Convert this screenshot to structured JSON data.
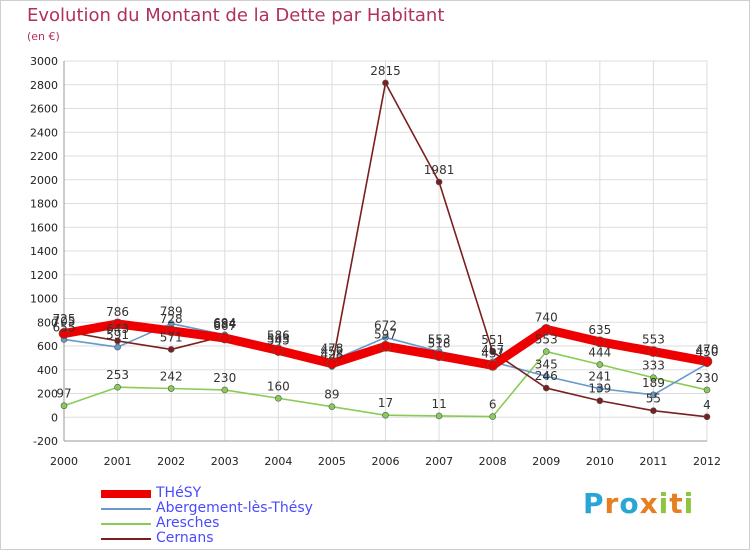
{
  "title": "Evolution du Montant de la Dette par Habitant",
  "subtitle": "(en €)",
  "logo": {
    "letters": [
      "P",
      "r",
      "o",
      "x",
      "i",
      "t",
      "i"
    ],
    "colors": [
      "#2aa6d6",
      "#e67e22",
      "#2aa6d6",
      "#e67e22",
      "#8cc63f",
      "#e67e22",
      "#8cc63f"
    ]
  },
  "chart_data": {
    "type": "line",
    "x": [
      "2000",
      "2001",
      "2002",
      "2003",
      "2004",
      "2005",
      "2006",
      "2007",
      "2008",
      "2009",
      "2010",
      "2011",
      "2012"
    ],
    "ylim": [
      -200,
      3000
    ],
    "yticks": [
      "-200",
      "0",
      "200",
      "400",
      "600",
      "800",
      "1000",
      "1200",
      "1400",
      "1600",
      "1800",
      "2000",
      "2200",
      "2400",
      "2600",
      "2800",
      "3000"
    ],
    "ytick_values": [
      -200,
      0,
      200,
      400,
      600,
      800,
      1000,
      1200,
      1400,
      1600,
      1800,
      2000,
      2200,
      2400,
      2600,
      2800,
      3000
    ],
    "grid": true,
    "legend_position": "bottom-left",
    "series": [
      {
        "name": "THéSY",
        "color": "#ee0000",
        "values": [
          705,
          786,
          728,
          667,
          563,
          452,
          597,
          518,
          437,
          740,
          635,
          553,
          470
        ],
        "labels": [
          "705",
          "786",
          "728",
          "667",
          "563",
          "452",
          "597",
          "518",
          "437",
          "740",
          "635",
          "553",
          "470"
        ]
      },
      {
        "name": "Abergement-lès-Thésy",
        "color": "#6699cc",
        "values": [
          655,
          591,
          789,
          694,
          586,
          478,
          672,
          553,
          467,
          345,
          241,
          189,
          450
        ],
        "labels": [
          "655",
          "591",
          "789",
          "694",
          "586",
          "478",
          "672",
          "553",
          "467",
          "345",
          "241",
          "189",
          "450"
        ]
      },
      {
        "name": "Aresches",
        "color": "#88cc55",
        "values": [
          97,
          253,
          242,
          230,
          160,
          89,
          17,
          11,
          6,
          553,
          444,
          333,
          230
        ],
        "labels": [
          "97",
          "253",
          "242",
          "230",
          "160",
          "89",
          "17",
          "11",
          "6",
          "553",
          "444",
          "333",
          "230"
        ]
      },
      {
        "name": "Cernans",
        "color": "#7a1f1f",
        "values": [
          725,
          643,
          571,
          684,
          545,
          428,
          2815,
          1981,
          551,
          246,
          139,
          55,
          4
        ],
        "labels": [
          "725",
          "643",
          "571",
          "684",
          "545",
          "428",
          "2815",
          "1981",
          "551",
          "246",
          "139",
          "55",
          "4"
        ]
      }
    ]
  }
}
